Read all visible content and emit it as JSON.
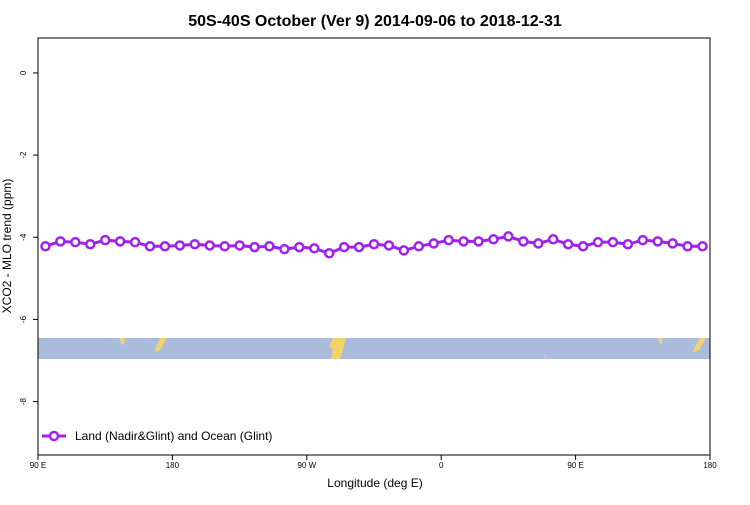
{
  "chart_data": {
    "type": "line",
    "title": "50S-40S October (Ver 9)   2014-09-06 to 2018-12-31",
    "x_label": "Longitude (deg E)",
    "y_label": "XCO2 - MLO trend (ppm)",
    "x": [
      95,
      105,
      115,
      125,
      135,
      145,
      155,
      165,
      175,
      185,
      195,
      205,
      215,
      225,
      235,
      245,
      255,
      265,
      275,
      285,
      295,
      305,
      315,
      325,
      335,
      345,
      355,
      365,
      375,
      385,
      395,
      405,
      415,
      425,
      435,
      445,
      455,
      465,
      475,
      485,
      495,
      505,
      515,
      525,
      535
    ],
    "series": [
      {
        "name": "Land (Nadir&Glint) and Ocean (Glint)",
        "color": "#a020f0",
        "values": [
          -4.22,
          -4.1,
          -4.12,
          -4.17,
          -4.07,
          -4.1,
          -4.12,
          -4.22,
          -4.22,
          -4.2,
          -4.17,
          -4.2,
          -4.22,
          -4.2,
          -4.24,
          -4.22,
          -4.29,
          -4.24,
          -4.27,
          -4.39,
          -4.24,
          -4.24,
          -4.17,
          -4.2,
          -4.32,
          -4.22,
          -4.15,
          -4.07,
          -4.1,
          -4.1,
          -4.05,
          -3.98,
          -4.1,
          -4.15,
          -4.05,
          -4.17,
          -4.22,
          -4.12,
          -4.12,
          -4.17,
          -4.07,
          -4.1,
          -4.15,
          -4.22,
          -4.22
        ]
      }
    ],
    "xlim": [
      90,
      540
    ],
    "xticks": [
      {
        "value": 90,
        "label": "90 E"
      },
      180,
      {
        "value": 270,
        "label": "90 W"
      },
      {
        "value": 360,
        "label": "0"
      },
      {
        "value": 450,
        "label": "90 E"
      },
      {
        "value": 540,
        "label": "180"
      }
    ],
    "ylim": [
      -9.3,
      0.85
    ],
    "yticks": [
      0,
      -2,
      -4,
      -6,
      -8
    ],
    "legend": "bottomleft"
  }
}
